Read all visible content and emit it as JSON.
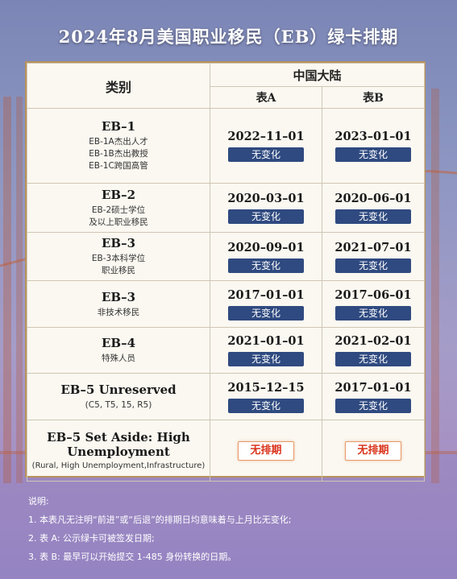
{
  "title": "2024年8月美国职业移民（EB）绿卡排期",
  "table": {
    "header_type": "类别",
    "header_region": "中国大陆",
    "header_a": "表A",
    "header_b": "表B",
    "rows": [
      {
        "name": "EB–1",
        "desc": [
          "EB-1A杰出人才",
          "EB-1B杰出教授",
          "EB-1C跨国高管"
        ],
        "a": "2022–11–01",
        "a_status": "无变化",
        "b": "2023–01–01",
        "b_status": "无变化"
      },
      {
        "name": "EB–2",
        "desc": [
          "EB-2硕士学位",
          "及以上职业移民"
        ],
        "a": "2020–03–01",
        "a_status": "无变化",
        "b": "2020–06–01",
        "b_status": "无变化"
      },
      {
        "name": "EB–3",
        "desc": [
          "EB-3本科学位",
          "职业移民"
        ],
        "a": "2020–09–01",
        "a_status": "无变化",
        "b": "2021–07–01",
        "b_status": "无变化"
      },
      {
        "name": "EB–3",
        "desc": [
          "非技术移民"
        ],
        "a": "2017–01–01",
        "a_status": "无变化",
        "b": "2017–06–01",
        "b_status": "无变化"
      },
      {
        "name": "EB–4",
        "desc": [
          "特殊人员"
        ],
        "a": "2021–01–01",
        "a_status": "无变化",
        "b": "2021–02–01",
        "b_status": "无变化"
      },
      {
        "name": "EB–5 Unreserved",
        "desc": [
          "(C5, T5, 15, R5)"
        ],
        "a": "2015–12–15",
        "a_status": "无变化",
        "b": "2017–01–01",
        "b_status": "无变化"
      }
    ],
    "last_row": {
      "name_line1": "EB–5 Set Aside: High",
      "name_line2": "Unemployment",
      "desc": "(Rural, High Unemployment,Infrastructure)",
      "a_status": "无排期",
      "b_status": "无排期"
    }
  },
  "notes": {
    "heading": "说明:",
    "items": [
      "1. 本表凡无注明“前进”或“后退”的排期日均意味着与上月比无变化;",
      "2. 表 A: 公示绿卡可被签发日期;",
      "3. 表 B: 最早可以开始提交 1-485 身份转换的日期。"
    ]
  },
  "colors": {
    "badge": "#2f4a80",
    "none_text": "#d9331b",
    "table_border": "#b8925c"
  }
}
